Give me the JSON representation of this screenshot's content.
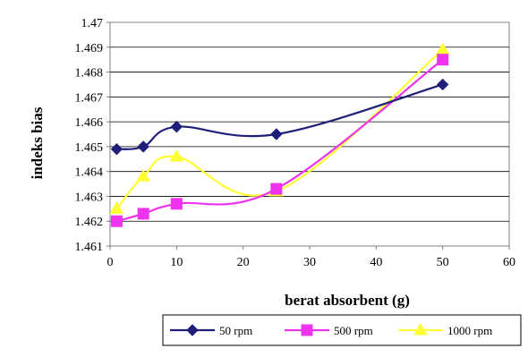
{
  "chart_data": {
    "type": "line",
    "title": "",
    "xlabel": "berat absorbent (g)",
    "ylabel": "indeks bias",
    "xlim": [
      0,
      60
    ],
    "ylim": [
      1.461,
      1.47
    ],
    "x_ticks": [
      "0",
      "10",
      "20",
      "30",
      "40",
      "50",
      "60"
    ],
    "y_ticks": [
      "1.461",
      "1.462",
      "1.463",
      "1.464",
      "1.465",
      "1.466",
      "1.467",
      "1.468",
      "1.469",
      "1.47"
    ],
    "grid": "horizontal",
    "legend_position": "bottom",
    "series": [
      {
        "name": "50 rpm",
        "color": "#1f1f7a",
        "marker": "diamond",
        "x": [
          1,
          5,
          10,
          25,
          50
        ],
        "y": [
          1.4649,
          1.465,
          1.4658,
          1.4655,
          1.4675
        ]
      },
      {
        "name": "500 rpm",
        "color": "#ee33ee",
        "marker": "square",
        "x": [
          1,
          5,
          10,
          25,
          50
        ],
        "y": [
          1.462,
          1.4623,
          1.4627,
          1.4633,
          1.4685
        ]
      },
      {
        "name": "1000 rpm",
        "color": "#ffff33",
        "marker": "triangle",
        "x": [
          1,
          5,
          10,
          25,
          50
        ],
        "y": [
          1.4625,
          1.4638,
          1.4646,
          1.4632,
          1.4689
        ]
      }
    ]
  }
}
